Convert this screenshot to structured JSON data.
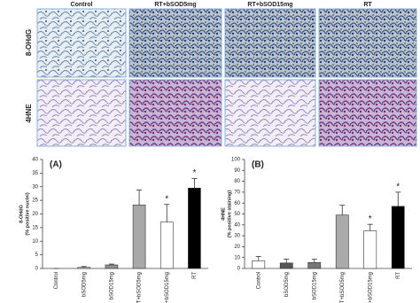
{
  "image_grid": {
    "columns": [
      "Control",
      "RT+bSOD5mg",
      "RT+bSOD15mg",
      "RT"
    ],
    "rows": [
      "8-OHdG",
      "4HNE"
    ]
  },
  "chart_data": [
    {
      "type": "bar",
      "title": "(A)",
      "ylabel": [
        "8-OHdG",
        "(% positive nuclei)"
      ],
      "categories": [
        "Control",
        "bSOD5mg",
        "bSOD15mg",
        "RT+bSOD5mg",
        "RT+bSOD15mg",
        "RT"
      ],
      "values": [
        0,
        0.4,
        1.3,
        23.3,
        17,
        29.5
      ],
      "errors": [
        0,
        0.3,
        0.3,
        5.5,
        6.5,
        3.5
      ],
      "colors": [
        "#ffffff",
        "#d0d0d0",
        "#909090",
        "#a8a8a8",
        "#ffffff",
        "#000000"
      ],
      "significance": [
        null,
        null,
        null,
        null,
        "*",
        "*"
      ],
      "ylim": [
        0,
        40
      ],
      "yticks": [
        0,
        5,
        10,
        15,
        20,
        25,
        30,
        35,
        40
      ]
    },
    {
      "type": "bar",
      "title": "(B)",
      "ylabel": [
        "4HNE",
        "(% positive staining)"
      ],
      "categories": [
        "Control",
        "bSOD5mg",
        "bSOD15mg",
        "RT+bSOD5mg",
        "RT+bSOD15mg",
        "RT"
      ],
      "values": [
        7,
        5,
        5.5,
        49,
        34.5,
        57
      ],
      "errors": [
        4,
        3.5,
        3,
        9,
        6,
        13
      ],
      "colors": [
        "#ffffff",
        "#555555",
        "#777777",
        "#aaaaaa",
        "#ffffff",
        "#000000"
      ],
      "significance": [
        null,
        null,
        null,
        null,
        "*",
        "*"
      ],
      "ylim": [
        0,
        100
      ],
      "yticks": [
        0,
        10,
        20,
        30,
        40,
        50,
        60,
        70,
        80,
        90,
        100
      ]
    }
  ]
}
